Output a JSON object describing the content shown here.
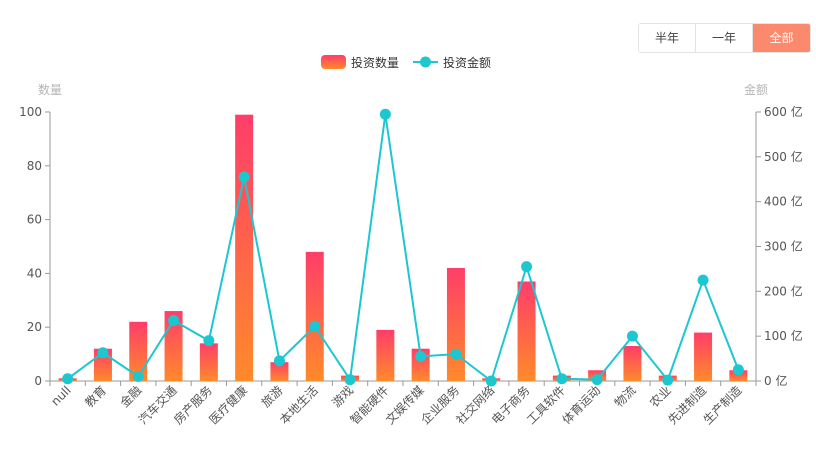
{
  "tabs": [
    {
      "label": "半年",
      "active": false
    },
    {
      "label": "一年",
      "active": false
    },
    {
      "label": "全部",
      "active": true
    }
  ],
  "colors": {
    "bar_top": "#ff3d6a",
    "bar_bottom": "#ff8a2a",
    "line": "#1cc7d0",
    "axis": "#9a9a9a",
    "tick_text": "#555555",
    "axis_name": "#b5b5b5",
    "tab_active": "#fb8a6d"
  },
  "chart_data": {
    "type": "bar",
    "categories": [
      "null",
      "教育",
      "金融",
      "汽车交通",
      "房产服务",
      "医疗健康",
      "旅游",
      "本地生活",
      "游戏",
      "智能硬件",
      "文娱传媒",
      "企业服务",
      "社交网络",
      "电子商务",
      "工具软件",
      "体育运动",
      "物流",
      "农业",
      "先进制造",
      "生产制造"
    ],
    "series": [
      {
        "name": "投资数量",
        "type": "bar",
        "axis": "left",
        "values": [
          1,
          12,
          22,
          26,
          14,
          99,
          7,
          48,
          2,
          19,
          12,
          42,
          1,
          37,
          2,
          4,
          13,
          2,
          18,
          4
        ]
      },
      {
        "name": "投资金额",
        "type": "line",
        "axis": "right",
        "values": [
          5,
          63,
          10,
          135,
          90,
          455,
          45,
          122,
          3,
          595,
          55,
          60,
          0,
          255,
          5,
          3,
          100,
          2,
          225,
          25
        ]
      }
    ],
    "left_axis": {
      "name": "数量",
      "min": 0,
      "max": 100,
      "ticks": [
        0,
        20,
        40,
        60,
        80,
        100
      ],
      "unit": ""
    },
    "right_axis": {
      "name": "金额",
      "min": 0,
      "max": 600,
      "ticks": [
        0,
        100,
        200,
        300,
        400,
        500,
        600
      ],
      "unit": " 亿"
    },
    "legend": {
      "placement": "top-center"
    },
    "grid": false
  }
}
